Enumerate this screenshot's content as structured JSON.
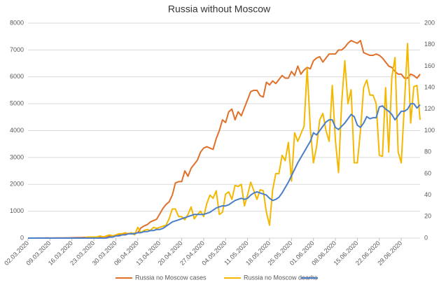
{
  "chart_data": {
    "type": "line",
    "title": "Russia without Moscow",
    "categories": [
      "02.03.2020",
      null,
      null,
      null,
      null,
      null,
      null,
      "09.03.2020",
      null,
      null,
      null,
      null,
      null,
      null,
      "16.03.2020",
      null,
      null,
      null,
      null,
      null,
      null,
      "23.03.2020",
      null,
      null,
      null,
      null,
      null,
      null,
      "30.03.2020",
      null,
      null,
      null,
      null,
      null,
      null,
      "06.04.2020",
      null,
      null,
      null,
      null,
      null,
      null,
      "13.04.2020",
      null,
      null,
      null,
      null,
      null,
      null,
      "20.04.2020",
      null,
      null,
      null,
      null,
      null,
      null,
      "27.04.2020",
      null,
      null,
      null,
      null,
      null,
      null,
      "04.05.2020",
      null,
      null,
      null,
      null,
      null,
      null,
      "11.05.2020",
      null,
      null,
      null,
      null,
      null,
      null,
      "18.05.2020",
      null,
      null,
      null,
      null,
      null,
      null,
      "25.05.2020",
      null,
      null,
      null,
      null,
      null,
      null,
      "01.06.2020",
      null,
      null,
      null,
      null,
      null,
      null,
      "08.06.2020",
      null,
      null,
      null,
      null,
      null,
      null,
      "15.06.2020",
      null,
      null,
      null,
      null,
      null,
      null,
      "22.06.2020",
      null,
      null,
      null,
      null,
      null,
      null,
      "29.06.2020",
      null,
      null,
      null,
      null,
      null,
      null
    ],
    "series": [
      {
        "name": "Russia no Moscow cases",
        "color": "#e0702a",
        "axis": "y",
        "values": [
          0,
          0,
          0,
          2,
          2,
          3,
          5,
          3,
          4,
          5,
          5,
          8,
          10,
          8,
          12,
          15,
          18,
          20,
          25,
          22,
          30,
          35,
          40,
          45,
          50,
          60,
          70,
          80,
          100,
          120,
          140,
          160,
          170,
          160,
          180,
          200,
          380,
          450,
          500,
          600,
          650,
          700,
          900,
          1100,
          1250,
          1350,
          1600,
          2050,
          2100,
          2100,
          2500,
          2300,
          2600,
          2750,
          2900,
          3200,
          3350,
          3400,
          3350,
          3300,
          3700,
          4000,
          4400,
          4300,
          4700,
          4800,
          4400,
          4700,
          4550,
          4850,
          5150,
          5450,
          5500,
          5500,
          5300,
          5250,
          5800,
          5700,
          5850,
          5750,
          5900,
          6050,
          5950,
          5950,
          6200,
          6050,
          6400,
          6100,
          6250,
          6350,
          6300,
          6600,
          6700,
          6750,
          6550,
          6700,
          6850,
          6850,
          6850,
          7000,
          7000,
          7100,
          7250,
          7350,
          7300,
          7250,
          7350,
          6900,
          6850,
          6800,
          6800,
          6850,
          6800,
          6700,
          6550,
          6400,
          6350,
          6200,
          6100,
          6100,
          5950,
          5950,
          6100,
          6050,
          5950,
          6100
        ]
      },
      {
        "name": "Russia no Moscow dearhs",
        "color": "#f5b800",
        "axis": "y2",
        "values": [
          0,
          0,
          0,
          0,
          0,
          0,
          0,
          0,
          0,
          0,
          0,
          0,
          0,
          0,
          0,
          0,
          0,
          0,
          0,
          1,
          1,
          1,
          1,
          2,
          1,
          2,
          3,
          2,
          3,
          4,
          4,
          5,
          4,
          5,
          3,
          10,
          5,
          7,
          8,
          7,
          10,
          9,
          10,
          11,
          12,
          18,
          27,
          27,
          20,
          20,
          17,
          22,
          29,
          18,
          22,
          25,
          20,
          32,
          40,
          37,
          44,
          22,
          24,
          41,
          43,
          36,
          49,
          48,
          50,
          30,
          40,
          52,
          44,
          36,
          45,
          44,
          24,
          12,
          45,
          60,
          60,
          77,
          72,
          89,
          53,
          98,
          90,
          97,
          104,
          158,
          102,
          70,
          85,
          110,
          116,
          100,
          90,
          142,
          91,
          61,
          126,
          165,
          125,
          138,
          70,
          70,
          100,
          140,
          147,
          133,
          133,
          125,
          77,
          76,
          140,
          80,
          150,
          168,
          80,
          70,
          125,
          181,
          107,
          141,
          142,
          110
        ]
      },
      {
        "color": "#4a7ec8",
        "axis": "y2",
        "values": [
          0,
          0,
          0,
          0,
          0,
          0,
          0,
          0,
          0,
          0,
          0,
          0,
          0,
          0,
          0,
          0,
          0,
          0,
          0,
          0,
          0,
          0,
          0,
          0,
          0,
          0,
          1,
          1,
          2,
          2,
          3,
          3,
          4,
          4,
          4,
          5,
          5,
          6,
          6,
          7,
          7,
          8,
          8,
          9,
          11,
          13,
          15,
          16,
          17,
          18,
          19,
          20,
          21,
          22,
          22,
          22,
          22,
          23,
          24,
          26,
          28,
          29,
          30,
          30,
          31,
          33,
          35,
          36,
          37,
          36,
          37,
          40,
          42,
          43,
          42,
          41,
          40,
          37,
          35,
          36,
          38,
          42,
          47,
          52,
          58,
          64,
          70,
          75,
          80,
          85,
          90,
          98,
          96,
          100,
          104,
          108,
          110,
          110,
          103,
          101,
          104,
          107,
          111,
          115,
          113,
          105,
          103,
          107,
          113,
          111,
          112,
          112,
          122,
          123,
          120,
          118,
          115,
          110,
          114,
          118,
          118,
          120,
          125,
          125,
          121,
          124
        ]
      }
    ],
    "ylim": [
      0,
      8000
    ],
    "yticks": [
      0,
      1000,
      2000,
      3000,
      4000,
      5000,
      6000,
      7000,
      8000
    ],
    "y2lim": [
      0,
      200
    ],
    "y2ticks": [
      0,
      20,
      40,
      60,
      80,
      100,
      120,
      140,
      160,
      180,
      200
    ],
    "grid": true
  }
}
